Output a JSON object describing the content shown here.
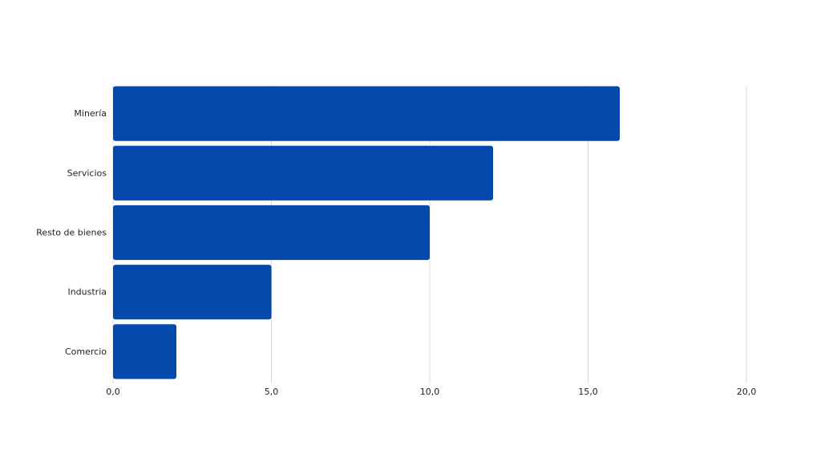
{
  "chart_data": {
    "type": "barh",
    "categories": [
      "Minería",
      "Servicios",
      "Resto de bienes",
      "Industria",
      "Comercio"
    ],
    "values": [
      16,
      12,
      10,
      5,
      2
    ],
    "color": "#0449ab",
    "xlim": [
      0,
      20
    ],
    "xticks": [
      {
        "value": 0,
        "label": "0,0"
      },
      {
        "value": 5,
        "label": "5,0"
      },
      {
        "value": 10,
        "label": "10,0"
      },
      {
        "value": 15,
        "label": "15,0"
      },
      {
        "value": 20,
        "label": "20,0"
      }
    ],
    "grid": true
  }
}
